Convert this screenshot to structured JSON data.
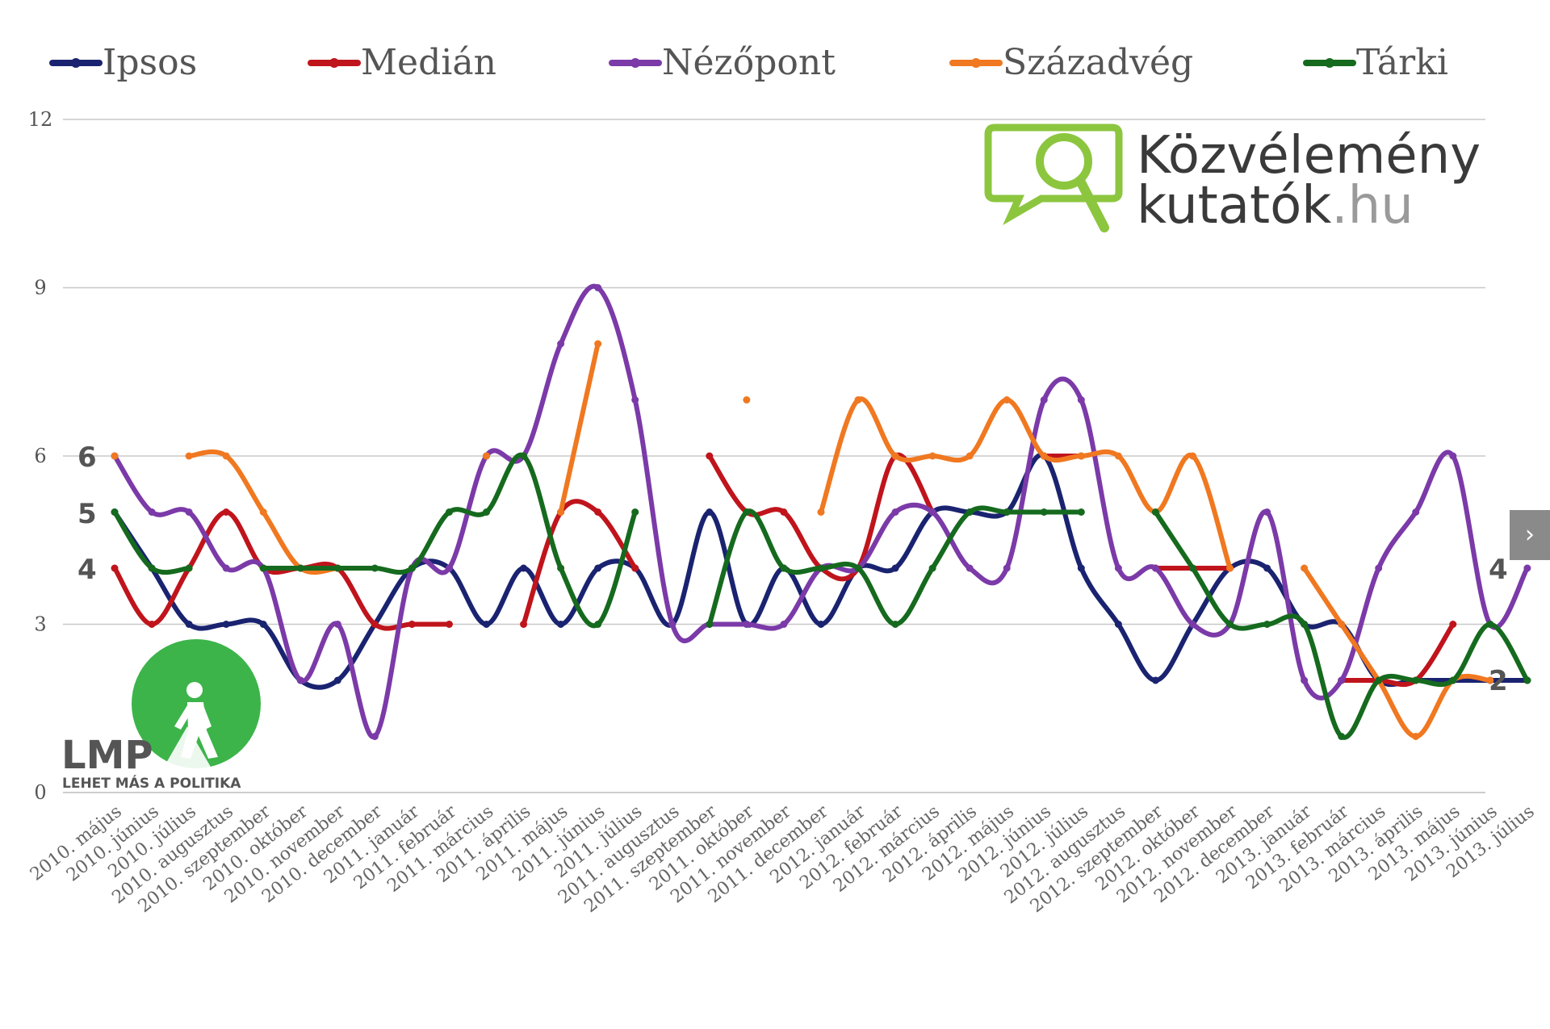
{
  "chart_data": {
    "type": "line",
    "y_ticks": [
      "0",
      "3",
      "6",
      "9",
      "12"
    ],
    "ylim": [
      0,
      12
    ],
    "grid": true,
    "legend_position": "top",
    "categories": [
      "2010. május",
      "2010. június",
      "2010. július",
      "2010. augusztus",
      "2010. szeptember",
      "2010. október",
      "2010. november",
      "2010. december",
      "2011. január",
      "2011. február",
      "2011. március",
      "2011. április",
      "2011. május",
      "2011. június",
      "2011. július",
      "2011. augusztus",
      "2011. szeptember",
      "2011. október",
      "2011. november",
      "2011. december",
      "2012. január",
      "2012. február",
      "2012. március",
      "2012. április",
      "2012. május",
      "2012. június",
      "2012. július",
      "2012. augusztus",
      "2012. szeptember",
      "2012. október",
      "2012. november",
      "2012. december",
      "2013. január",
      "2013. február",
      "2013. március",
      "2013. április",
      "2013. május",
      "2013. június",
      "2013. július"
    ],
    "series": [
      {
        "name": "Ipsos",
        "color": "#1a2370",
        "values": [
          5,
          4,
          3,
          3,
          3,
          2,
          2,
          3,
          4,
          4,
          3,
          4,
          3,
          4,
          4,
          3,
          5,
          3,
          4,
          3,
          4,
          4,
          5,
          5,
          5,
          6,
          4,
          3,
          2,
          3,
          4,
          4,
          3,
          3,
          2,
          2,
          2,
          2,
          2
        ]
      },
      {
        "name": "Medián",
        "color": "#c0141c",
        "values": [
          4,
          3,
          4,
          5,
          4,
          4,
          4,
          3,
          3,
          3,
          null,
          3,
          5,
          5,
          4,
          null,
          6,
          5,
          5,
          4,
          4,
          6,
          5,
          null,
          null,
          6,
          6,
          null,
          4,
          4,
          4,
          null,
          null,
          2,
          2,
          2,
          3,
          null,
          null
        ]
      },
      {
        "name": "Nézőpont",
        "color": "#7b3aa8",
        "values": [
          6,
          5,
          5,
          4,
          4,
          2,
          3,
          1,
          4,
          4,
          6,
          6,
          8,
          9,
          7,
          3,
          3,
          3,
          3,
          4,
          4,
          5,
          5,
          4,
          4,
          7,
          7,
          4,
          4,
          3,
          3,
          5,
          2,
          2,
          4,
          5,
          6,
          3,
          4
        ]
      },
      {
        "name": "Századvég",
        "color": "#f07820",
        "values": [
          6,
          null,
          6,
          6,
          5,
          4,
          4,
          null,
          null,
          null,
          6,
          null,
          5,
          8,
          null,
          null,
          null,
          7,
          null,
          5,
          7,
          6,
          6,
          6,
          7,
          6,
          6,
          6,
          5,
          6,
          4,
          null,
          4,
          3,
          2,
          1,
          2,
          2,
          null
        ]
      },
      {
        "name": "Tárki",
        "color": "#156a1e",
        "values": [
          5,
          4,
          4,
          null,
          4,
          4,
          4,
          4,
          4,
          5,
          5,
          6,
          4,
          3,
          5,
          null,
          3,
          5,
          4,
          4,
          4,
          3,
          4,
          5,
          5,
          5,
          5,
          null,
          5,
          4,
          3,
          3,
          3,
          1,
          2,
          2,
          2,
          3,
          2
        ]
      }
    ],
    "end_labels_left": [
      "6",
      "5",
      "4"
    ],
    "end_labels_right": [
      "4",
      "2"
    ]
  },
  "logo": {
    "brand_line1": "Közvélemény",
    "brand_line2_main": "kutatók",
    "brand_line2_suffix": ".hu",
    "lmp_name": "LMP",
    "lmp_tagline": "LEHET MÁS A POLITIKA"
  },
  "nav": {
    "next_label": "›"
  }
}
